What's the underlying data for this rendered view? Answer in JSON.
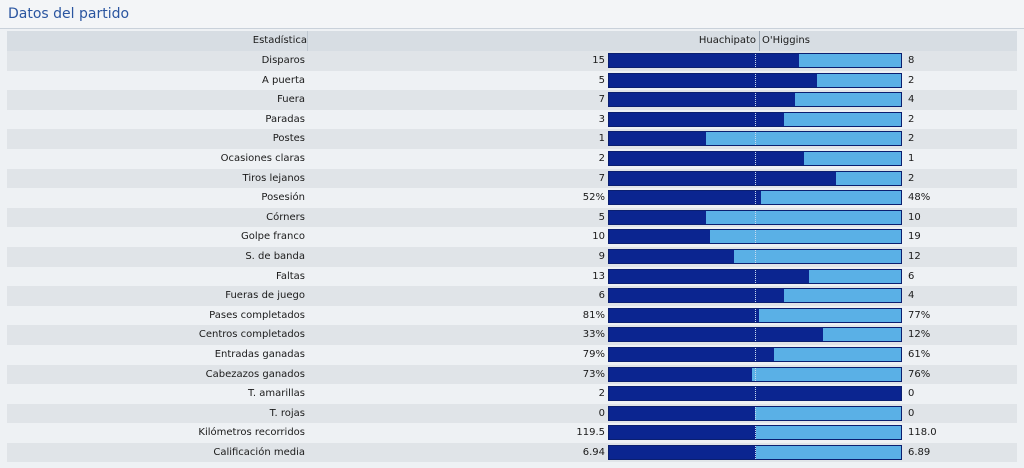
{
  "title": "Datos del partido",
  "header": {
    "stat": "Estadística",
    "home": "Huachipato",
    "away": "O'Higgins"
  },
  "colors": {
    "home_bar": "#0b2590",
    "away_bar": "#5ab0e6"
  },
  "stats": [
    {
      "label": "Disparos",
      "home": "15",
      "away": "8",
      "home_share": 0.652
    },
    {
      "label": "A puerta",
      "home": "5",
      "away": "2",
      "home_share": 0.714
    },
    {
      "label": "Fuera",
      "home": "7",
      "away": "4",
      "home_share": 0.636
    },
    {
      "label": "Paradas",
      "home": "3",
      "away": "2",
      "home_share": 0.6
    },
    {
      "label": "Postes",
      "home": "1",
      "away": "2",
      "home_share": 0.333
    },
    {
      "label": "Ocasiones claras",
      "home": "2",
      "away": "1",
      "home_share": 0.667
    },
    {
      "label": "Tiros lejanos",
      "home": "7",
      "away": "2",
      "home_share": 0.778
    },
    {
      "label": "Posesión",
      "home": "52%",
      "away": "48%",
      "home_share": 0.52
    },
    {
      "label": "Córners",
      "home": "5",
      "away": "10",
      "home_share": 0.333
    },
    {
      "label": "Golpe franco",
      "home": "10",
      "away": "19",
      "home_share": 0.345
    },
    {
      "label": "S. de banda",
      "home": "9",
      "away": "12",
      "home_share": 0.429
    },
    {
      "label": "Faltas",
      "home": "13",
      "away": "6",
      "home_share": 0.684
    },
    {
      "label": "Fueras de juego",
      "home": "6",
      "away": "4",
      "home_share": 0.6
    },
    {
      "label": "Pases completados",
      "home": "81%",
      "away": "77%",
      "home_share": 0.513
    },
    {
      "label": "Centros completados",
      "home": "33%",
      "away": "12%",
      "home_share": 0.733
    },
    {
      "label": "Entradas ganadas",
      "home": "79%",
      "away": "61%",
      "home_share": 0.564
    },
    {
      "label": "Cabezazos ganados",
      "home": "73%",
      "away": "76%",
      "home_share": 0.49
    },
    {
      "label": "T. amarillas",
      "home": "2",
      "away": "0",
      "home_share": 1.0
    },
    {
      "label": "T. rojas",
      "home": "0",
      "away": "0",
      "home_share": 0.5
    },
    {
      "label": "Kilómetros recorridos",
      "home": "119.5",
      "away": "118.0",
      "home_share": 0.503
    },
    {
      "label": "Calificación media",
      "home": "6.94",
      "away": "6.89",
      "home_share": 0.502
    }
  ]
}
